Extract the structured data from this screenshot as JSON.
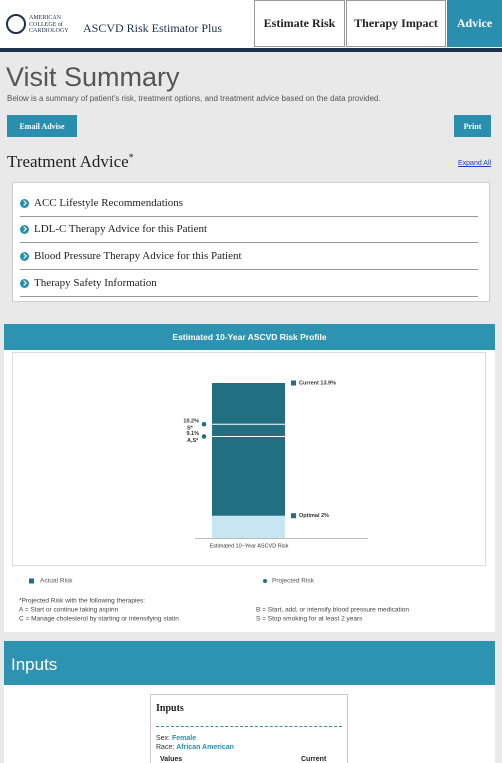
{
  "header": {
    "logo": [
      "AMERICAN",
      "COLLEGE of",
      "CARDIOLOGY"
    ],
    "app_title": "ASCVD Risk Estimator Plus",
    "tabs": [
      "Estimate Risk",
      "Therapy Impact",
      "Advice"
    ]
  },
  "summary": {
    "title": "Visit Summary",
    "subtitle": "Below is a summary of patient's risk, treatment options, and treatment advice based on the data provided.",
    "buttons": [
      "Email Advise",
      "Print"
    ]
  },
  "advice": {
    "title": "Treatment Advice",
    "title_mark": "*",
    "expand": "Expand All",
    "items": [
      "ACC Lifestyle Recommendations",
      "LDL-C Therapy Advice for this Patient",
      "Blood Pressure Therapy Advice for this Patient",
      "Therapy Safety Information"
    ]
  },
  "chart_data": {
    "type": "bar",
    "title": "Estimated 10-Year ASCVD Risk Profile",
    "x_label": "Estimated 10−Year ASCVD Risk",
    "current": {
      "value": 13.9,
      "label": "Current 13.9%",
      "color": "#236f82"
    },
    "optimal": {
      "value": 2,
      "label": "Optimal 2%",
      "color": "#c6e6f2"
    },
    "projected": [
      {
        "value": 10.2,
        "value_label": "10.2%",
        "therapies": "S*"
      },
      {
        "value": 9.1,
        "value_label": "9.1%",
        "therapies": "A,S*"
      }
    ],
    "legend": [
      "Actual Risk",
      "Projected Risk"
    ],
    "footnote": {
      "title": "*Projected Risk with the following therapies:",
      "items": [
        "A = Start or continue taking aspirin",
        "B = Start, add, or intensify blood pressure medication",
        "C = Manage cholesterol by starting or intensifying statin",
        "S = Stop smoking for at least 2 years"
      ]
    }
  },
  "inputs": {
    "title": "Inputs",
    "card_title": "Inputs",
    "sex_label": "Sex:",
    "sex": "Female",
    "race_label": "Race:",
    "race": "African American",
    "columns": [
      "Values",
      "Current"
    ]
  }
}
